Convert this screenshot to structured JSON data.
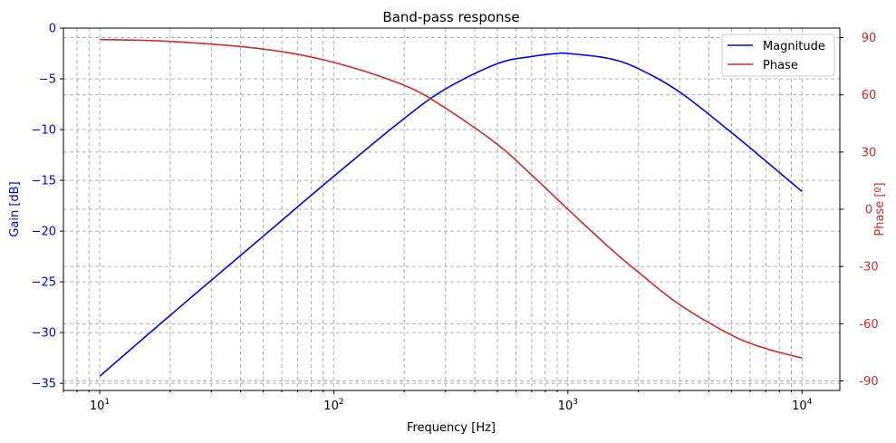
{
  "chart_data": {
    "type": "line",
    "title": "Band-pass response",
    "xlabel": "Frequency [Hz]",
    "ylabel_left": "Gain [dB]",
    "ylabel_right": "Phase [º]",
    "x_scale": "log",
    "xlim": [
      7,
      14500
    ],
    "ylim_left": [
      -35.7,
      0
    ],
    "ylim_right": [
      -95,
      95
    ],
    "grid": true,
    "legend_position": "top-right",
    "x_ticks": [
      {
        "value": 10,
        "base": "10",
        "exp": "1"
      },
      {
        "value": 100,
        "base": "10",
        "exp": "2"
      },
      {
        "value": 1000,
        "base": "10",
        "exp": "3"
      },
      {
        "value": 10000,
        "base": "10",
        "exp": "4"
      }
    ],
    "left_ticks": [
      {
        "value": 0,
        "label": "0"
      },
      {
        "value": -5,
        "label": "−5"
      },
      {
        "value": -10,
        "label": "−10"
      },
      {
        "value": -15,
        "label": "−15"
      },
      {
        "value": -20,
        "label": "−20"
      },
      {
        "value": -25,
        "label": "−25"
      },
      {
        "value": -30,
        "label": "−30"
      },
      {
        "value": -35,
        "label": "−35"
      }
    ],
    "right_ticks": [
      {
        "value": 90,
        "label": "90"
      },
      {
        "value": 60,
        "label": "60"
      },
      {
        "value": 30,
        "label": "30"
      },
      {
        "value": 0,
        "label": "0"
      },
      {
        "value": -30,
        "label": "-30"
      },
      {
        "value": -60,
        "label": "-60"
      },
      {
        "value": -90,
        "label": "-90"
      }
    ],
    "series": [
      {
        "name": "Magnitude",
        "axis": "left",
        "color": "#0000ff",
        "x": [
          10,
          20,
          50,
          100,
          200,
          300,
          500,
          700,
          900,
          1000,
          1500,
          2000,
          3000,
          5000,
          7000,
          10000
        ],
        "y": [
          -34.3,
          -28.3,
          -20.5,
          -14.6,
          -8.9,
          -6.0,
          -3.5,
          -2.8,
          -2.5,
          -2.5,
          -3.0,
          -4.0,
          -6.3,
          -10.3,
          -13.1,
          -16.1
        ]
      },
      {
        "name": "Phase",
        "axis": "right",
        "color": "#d62728",
        "x": [
          10,
          20,
          50,
          100,
          200,
          300,
          500,
          700,
          1000,
          1500,
          2000,
          3000,
          5000,
          7000,
          10000
        ],
        "y": [
          89,
          88,
          84,
          77,
          65,
          53,
          34,
          18,
          0,
          -20,
          -33,
          -50,
          -66,
          -73,
          -78
        ]
      }
    ]
  }
}
